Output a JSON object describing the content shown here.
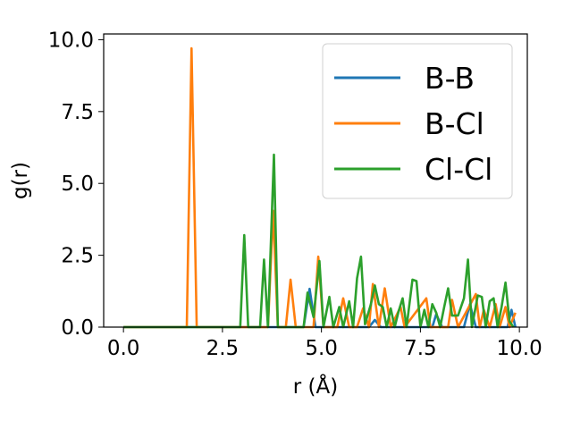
{
  "chart_data": {
    "type": "line",
    "xlabel": "r (Å)",
    "ylabel": "g(r)",
    "xlim": [
      -0.5,
      10.2
    ],
    "ylim": [
      0,
      10.2
    ],
    "xticks": [
      "0.0",
      "2.5",
      "5.0",
      "7.5",
      "10.0"
    ],
    "yticks": [
      "0.0",
      "2.5",
      "5.0",
      "7.5",
      "10.0"
    ],
    "legend_position": "top-right",
    "grid": false,
    "series": [
      {
        "name": "B-B",
        "color": "#1f77b4",
        "points": [
          [
            0,
            0
          ],
          [
            4.55,
            0
          ],
          [
            4.7,
            1.33
          ],
          [
            4.85,
            0
          ],
          [
            6.2,
            0
          ],
          [
            6.35,
            0.25
          ],
          [
            6.5,
            0
          ],
          [
            7.8,
            0
          ],
          [
            7.9,
            0.45
          ],
          [
            8.05,
            0
          ],
          [
            8.6,
            0
          ],
          [
            8.75,
            0.8
          ],
          [
            8.9,
            0
          ],
          [
            9.7,
            0
          ],
          [
            9.8,
            0.6
          ],
          [
            9.9,
            0
          ]
        ]
      },
      {
        "name": "B-Cl",
        "color": "#ff7f0e",
        "points": [
          [
            0,
            0
          ],
          [
            1.6,
            0
          ],
          [
            1.72,
            9.7
          ],
          [
            1.85,
            0
          ],
          [
            3.65,
            0
          ],
          [
            3.78,
            4.05
          ],
          [
            3.9,
            0
          ],
          [
            4.1,
            0
          ],
          [
            4.22,
            1.65
          ],
          [
            4.35,
            0
          ],
          [
            4.8,
            0
          ],
          [
            4.92,
            2.45
          ],
          [
            5.05,
            0
          ],
          [
            5.4,
            0
          ],
          [
            5.55,
            1.0
          ],
          [
            5.7,
            0
          ],
          [
            5.9,
            0
          ],
          [
            6.05,
            0.65
          ],
          [
            6.2,
            0
          ],
          [
            6.3,
            1.5
          ],
          [
            6.45,
            0
          ],
          [
            6.6,
            1.35
          ],
          [
            6.75,
            0
          ],
          [
            7.0,
            0.7
          ],
          [
            7.1,
            0
          ],
          [
            7.65,
            1.0
          ],
          [
            7.75,
            0
          ],
          [
            8.2,
            0
          ],
          [
            8.3,
            0.95
          ],
          [
            8.45,
            0
          ],
          [
            8.9,
            1.15
          ],
          [
            9.0,
            0
          ],
          [
            9.1,
            0.6
          ],
          [
            9.25,
            0
          ],
          [
            9.4,
            0.8
          ],
          [
            9.5,
            0
          ],
          [
            9.65,
            0.7
          ],
          [
            9.75,
            0
          ],
          [
            9.9,
            0.5
          ]
        ]
      },
      {
        "name": "Cl-Cl",
        "color": "#2ca02c",
        "points": [
          [
            0,
            0
          ],
          [
            2.95,
            0
          ],
          [
            3.05,
            3.2
          ],
          [
            3.15,
            0
          ],
          [
            3.45,
            0
          ],
          [
            3.55,
            2.35
          ],
          [
            3.65,
            0
          ],
          [
            3.8,
            6.0
          ],
          [
            3.9,
            0
          ],
          [
            4.55,
            0
          ],
          [
            4.65,
            1.2
          ],
          [
            4.8,
            0.35
          ],
          [
            4.95,
            2.3
          ],
          [
            5.05,
            0
          ],
          [
            5.2,
            1.05
          ],
          [
            5.3,
            0
          ],
          [
            5.45,
            0.7
          ],
          [
            5.55,
            0
          ],
          [
            5.7,
            0.9
          ],
          [
            5.8,
            0
          ],
          [
            5.9,
            1.7
          ],
          [
            6.0,
            2.45
          ],
          [
            6.1,
            0.1
          ],
          [
            6.25,
            0.8
          ],
          [
            6.35,
            1.45
          ],
          [
            6.45,
            0.8
          ],
          [
            6.55,
            0.7
          ],
          [
            6.65,
            0
          ],
          [
            6.75,
            0.65
          ],
          [
            6.85,
            0
          ],
          [
            6.95,
            0.55
          ],
          [
            7.05,
            1.0
          ],
          [
            7.15,
            0
          ],
          [
            7.3,
            1.65
          ],
          [
            7.4,
            1.6
          ],
          [
            7.5,
            0
          ],
          [
            7.6,
            0.6
          ],
          [
            7.7,
            0
          ],
          [
            7.8,
            0.8
          ],
          [
            7.9,
            0.5
          ],
          [
            8.0,
            0
          ],
          [
            8.1,
            0.7
          ],
          [
            8.2,
            1.35
          ],
          [
            8.3,
            0.4
          ],
          [
            8.45,
            0.4
          ],
          [
            8.6,
            1.0
          ],
          [
            8.7,
            2.35
          ],
          [
            8.8,
            0
          ],
          [
            8.95,
            1.1
          ],
          [
            9.05,
            1.05
          ],
          [
            9.15,
            0
          ],
          [
            9.25,
            0.9
          ],
          [
            9.35,
            1.0
          ],
          [
            9.45,
            0
          ],
          [
            9.55,
            0.7
          ],
          [
            9.65,
            1.55
          ],
          [
            9.75,
            0.2
          ],
          [
            9.85,
            0
          ]
        ]
      }
    ]
  }
}
